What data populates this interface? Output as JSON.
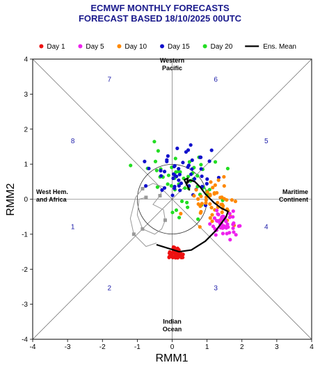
{
  "header": {
    "title_line1": "ECMWF MONTHLY FORECASTS",
    "title_line2": "FORECAST  BASED 18/10/2025 00UTC"
  },
  "legend": [
    {
      "label": "Day 1",
      "color": "#ee1111",
      "kind": "dot"
    },
    {
      "label": "Day 5",
      "color": "#ee22ee",
      "kind": "dot"
    },
    {
      "label": "Day 10",
      "color": "#ff8800",
      "kind": "dot"
    },
    {
      "label": "Day 15",
      "color": "#1111cc",
      "kind": "dot"
    },
    {
      "label": "Day 20",
      "color": "#22dd22",
      "kind": "dot"
    },
    {
      "label": "Ens. Mean",
      "color": "#000000",
      "kind": "line"
    }
  ],
  "regions": {
    "top_line1": "Western",
    "top_line2": "Pacific",
    "bottom_line1": "Indian",
    "bottom_line2": "Ocean",
    "left_line1": "West Hem.",
    "left_line2": "and Africa",
    "right_line1": "Maritime",
    "right_line2": "Continent"
  },
  "phases": [
    "1",
    "2",
    "3",
    "4",
    "5",
    "6",
    "7",
    "8"
  ],
  "chart_data": {
    "type": "scatter",
    "title": "ECMWF MONTHLY FORECASTS",
    "subtitle": "FORECAST  BASED 18/10/2025 00UTC",
    "xlabel": "RMM1",
    "ylabel": "RMM2",
    "xlim": [
      -4,
      4
    ],
    "ylim": [
      -4,
      4
    ],
    "x_ticks": [
      "-4",
      "-3",
      "-2",
      "-1",
      "0",
      "1",
      "2",
      "3",
      "4"
    ],
    "y_ticks": [
      "-4",
      "-3",
      "-2",
      "-1",
      "0",
      "1",
      "2",
      "3",
      "4"
    ],
    "series": [
      {
        "name": "Day 1",
        "color": "#ee1111",
        "center": [
          0.1,
          -1.55
        ],
        "spread": [
          0.18,
          0.12
        ],
        "count": 51
      },
      {
        "name": "Day 5",
        "color": "#ee22ee",
        "center": [
          1.55,
          -0.75
        ],
        "spread": [
          0.28,
          0.25
        ],
        "count": 51
      },
      {
        "name": "Day 10",
        "color": "#ff8800",
        "center": [
          1.2,
          -0.1
        ],
        "spread": [
          0.55,
          0.45
        ],
        "count": 51
      },
      {
        "name": "Day 15",
        "color": "#1111cc",
        "center": [
          0.3,
          0.75
        ],
        "spread": [
          0.75,
          0.55
        ],
        "count": 51
      },
      {
        "name": "Day 20",
        "color": "#22dd22",
        "center": [
          0.3,
          0.5
        ],
        "spread": [
          0.85,
          0.75
        ],
        "count": 51
      },
      {
        "name": "Ens. Mean",
        "color": "#000000",
        "type": "line",
        "x": [
          -0.45,
          0.2,
          0.55,
          0.95,
          1.25,
          1.55,
          1.6,
          1.4,
          1.2,
          1.1,
          0.95,
          0.8,
          0.65,
          0.5,
          0.42,
          0.45,
          0.35,
          0.45,
          0.5
        ],
        "y": [
          -1.3,
          -1.5,
          -1.45,
          -1.2,
          -0.9,
          -0.5,
          -0.35,
          -0.25,
          -0.1,
          0.0,
          0.15,
          0.35,
          0.5,
          0.55,
          0.45,
          0.6,
          0.55,
          0.35,
          0.25
        ]
      }
    ],
    "analysis_track": {
      "color": "#999999",
      "x": [
        -0.75,
        -0.95,
        -1.0,
        -0.85,
        -0.5,
        -0.3,
        -0.2,
        -0.25,
        -0.55,
        -0.35,
        -0.25,
        -0.55,
        -0.85,
        -1.05,
        -1.2,
        -1.1,
        -0.75,
        -0.45
      ],
      "y": [
        0.05,
        0.0,
        -0.45,
        -0.85,
        -1.0,
        -0.85,
        -0.6,
        -0.3,
        -0.15,
        0.1,
        0.35,
        0.45,
        0.3,
        0.05,
        -0.55,
        -1.0,
        -1.35,
        -1.25
      ]
    },
    "unit_circle": true,
    "grid": false
  }
}
